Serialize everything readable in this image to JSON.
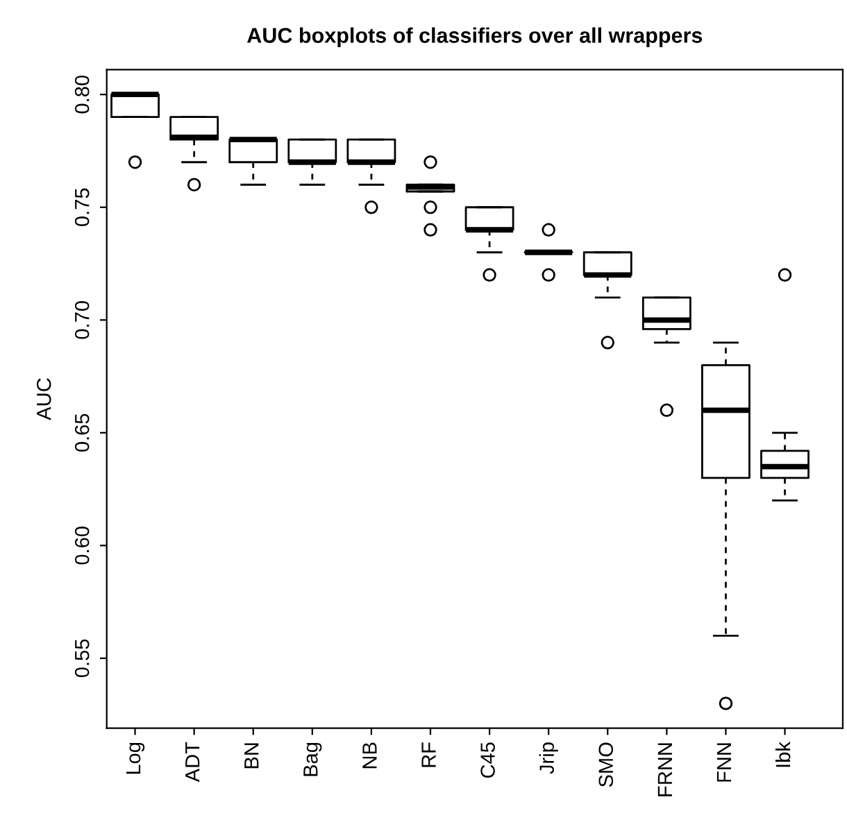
{
  "chart_data": {
    "type": "box",
    "title": "AUC boxplots of classifiers over all wrappers",
    "ylabel": "AUC",
    "categories": [
      "Log",
      "ADT",
      "BN",
      "Bag",
      "NB",
      "RF",
      "C45",
      "Jrip",
      "SMO",
      "FRNN",
      "FNN",
      "Ibk"
    ],
    "boxes": [
      {
        "low": 0.79,
        "q1": 0.79,
        "median": 0.8,
        "q3": 0.8,
        "high": 0.8,
        "outliers": [
          0.77
        ]
      },
      {
        "low": 0.77,
        "q1": 0.78,
        "median": 0.781,
        "q3": 0.79,
        "high": 0.79,
        "outliers": [
          0.76
        ]
      },
      {
        "low": 0.76,
        "q1": 0.77,
        "median": 0.78,
        "q3": 0.78,
        "high": 0.78
      },
      {
        "low": 0.76,
        "q1": 0.77,
        "median": 0.77,
        "q3": 0.78,
        "high": 0.78
      },
      {
        "low": 0.76,
        "q1": 0.77,
        "median": 0.77,
        "q3": 0.78,
        "high": 0.78,
        "outliers": [
          0.75
        ]
      },
      {
        "low": 0.757,
        "q1": 0.757,
        "median": 0.759,
        "q3": 0.76,
        "high": 0.76,
        "outliers": [
          0.77,
          0.75,
          0.74
        ]
      },
      {
        "low": 0.73,
        "q1": 0.74,
        "median": 0.74,
        "q3": 0.75,
        "high": 0.75,
        "outliers": [
          0.72
        ]
      },
      {
        "low": 0.73,
        "q1": 0.73,
        "median": 0.73,
        "q3": 0.73,
        "high": 0.73,
        "outliers": [
          0.74,
          0.72
        ]
      },
      {
        "low": 0.71,
        "q1": 0.72,
        "median": 0.72,
        "q3": 0.73,
        "high": 0.73,
        "outliers": [
          0.69
        ]
      },
      {
        "low": 0.69,
        "q1": 0.696,
        "median": 0.7,
        "q3": 0.71,
        "high": 0.71,
        "outliers": [
          0.66
        ]
      },
      {
        "low": 0.56,
        "q1": 0.63,
        "median": 0.66,
        "q3": 0.68,
        "high": 0.69,
        "outliers": [
          0.53
        ]
      },
      {
        "low": 0.62,
        "q1": 0.63,
        "median": 0.635,
        "q3": 0.642,
        "high": 0.65,
        "outliers": [
          0.72
        ]
      }
    ],
    "ylim": [
      0.519,
      0.811
    ],
    "yticks": [
      {
        "value": 0.55,
        "label": "0.55"
      },
      {
        "value": 0.6,
        "label": "0.60"
      },
      {
        "value": 0.65,
        "label": "0.65"
      },
      {
        "value": 0.7,
        "label": "0.70"
      },
      {
        "value": 0.75,
        "label": "0.75"
      },
      {
        "value": 0.8,
        "label": "0.80"
      }
    ],
    "grid": false,
    "legend": false
  }
}
